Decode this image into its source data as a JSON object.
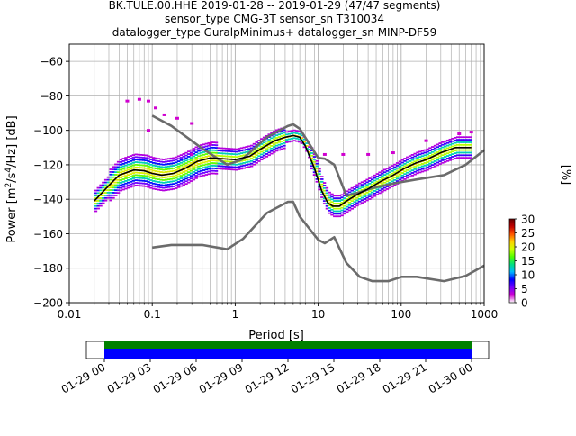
{
  "chart_data": {
    "type": "heatmap",
    "title_lines": [
      "BK.TULE.00.HHE   2019-01-28 -- 2019-01-29  (47/47 segments)",
      "sensor_type CMG-3T sensor_sn T310034",
      "datalogger_type GuralpMinimus+ datalogger_sn MINP-DF59"
    ],
    "xlabel": "Period [s]",
    "ylabel_parts": [
      "Power [m",
      "2",
      "/s",
      "4",
      "/Hz] [dB]"
    ],
    "x_scale": "log",
    "xlim": [
      0.01,
      1000
    ],
    "ylim": [
      -200,
      -50
    ],
    "x_ticks": [
      {
        "value": 0.01,
        "label": "0.01"
      },
      {
        "value": 0.1,
        "label": "0.1"
      },
      {
        "value": 1,
        "label": "1"
      },
      {
        "value": 10,
        "label": "10"
      },
      {
        "value": 100,
        "label": "100"
      },
      {
        "value": 1000,
        "label": "1000"
      }
    ],
    "y_ticks": [
      {
        "value": -60,
        "label": "−60"
      },
      {
        "value": -80,
        "label": "−80"
      },
      {
        "value": -100,
        "label": "−100"
      },
      {
        "value": -120,
        "label": "−120"
      },
      {
        "value": -140,
        "label": "−140"
      },
      {
        "value": -160,
        "label": "−160"
      },
      {
        "value": -180,
        "label": "−180"
      },
      {
        "value": -200,
        "label": "−200"
      }
    ],
    "grid": true,
    "colorbar": {
      "label": "[%]",
      "min": 0,
      "max": 30,
      "ticks": [
        {
          "value": 0,
          "label": "0"
        },
        {
          "value": 5,
          "label": "5"
        },
        {
          "value": 10,
          "label": "10"
        },
        {
          "value": 15,
          "label": "15"
        },
        {
          "value": 20,
          "label": "20"
        },
        {
          "value": 25,
          "label": "25"
        },
        {
          "value": 30,
          "label": "30"
        }
      ],
      "colors": [
        "#ffffff",
        "#d000d0",
        "#7000ff",
        "#0000ff",
        "#00b8ff",
        "#00e080",
        "#50ff00",
        "#d0ff00",
        "#ffd000",
        "#ff5000",
        "#c00000",
        "#600000"
      ]
    },
    "model_curves": [
      {
        "x": [
          0.1,
          0.17,
          0.4,
          0.8,
          1.2,
          2.4,
          4.3,
          5.0,
          6.0,
          10,
          12,
          15.6,
          21.9,
          31.6,
          45,
          70,
          101,
          154,
          328,
          600,
          1000
        ],
        "y": [
          -91.5,
          -97.4,
          -110.5,
          -120.0,
          -117.0,
          -104.0,
          -97.5,
          -96.5,
          -99.0,
          -116.0,
          -116.5,
          -120.0,
          -138.0,
          -136.0,
          -133.5,
          -131.5,
          -130.0,
          -128.5,
          -126.0,
          -120.0,
          -111.5
        ]
      },
      {
        "x": [
          0.1,
          0.17,
          0.4,
          0.8,
          1.24,
          2.4,
          4.3,
          5.0,
          6.0,
          10,
          12,
          15.6,
          21.9,
          31.6,
          45,
          70,
          101,
          154,
          328,
          600,
          1000
        ],
        "y": [
          -168.0,
          -166.5,
          -166.5,
          -169.0,
          -163.0,
          -148.0,
          -141.5,
          -141.5,
          -150.0,
          -163.5,
          -165.5,
          -162.0,
          -177.0,
          -185.0,
          -187.5,
          -187.5,
          -185.0,
          -185.0,
          -187.5,
          -184.5,
          -178.5
        ]
      }
    ],
    "median_curve": {
      "x": [
        0.02,
        0.03,
        0.04,
        0.06,
        0.08,
        0.1,
        0.13,
        0.18,
        0.25,
        0.35,
        0.5,
        0.7,
        1.0,
        1.5,
        2.0,
        3.0,
        4.0,
        5.0,
        6.0,
        7.0,
        9.0,
        11,
        13,
        15,
        18,
        22,
        30,
        40,
        55,
        80,
        110,
        150,
        200,
        300,
        450,
        700
      ],
      "y": [
        -141,
        -132,
        -126,
        -123,
        -123.5,
        -125,
        -126,
        -125,
        -122,
        -118,
        -116,
        -116.5,
        -117,
        -115,
        -111,
        -106,
        -104,
        -103,
        -104,
        -109,
        -122,
        -135,
        -142,
        -144,
        -144,
        -141,
        -137,
        -134,
        -130,
        -126,
        -122,
        -119,
        -117,
        -113,
        -110,
        -110
      ]
    },
    "scatter_points": [
      {
        "x": 0.05,
        "y": -83
      },
      {
        "x": 0.07,
        "y": -82
      },
      {
        "x": 0.09,
        "y": -83
      },
      {
        "x": 0.11,
        "y": -87
      },
      {
        "x": 0.14,
        "y": -91
      },
      {
        "x": 0.2,
        "y": -93
      },
      {
        "x": 0.3,
        "y": -96
      },
      {
        "x": 0.09,
        "y": -100
      },
      {
        "x": 0.3,
        "y": -114
      },
      {
        "x": 0.5,
        "y": -108
      },
      {
        "x": 12,
        "y": -114
      },
      {
        "x": 20,
        "y": -114
      },
      {
        "x": 40,
        "y": -114
      },
      {
        "x": 80,
        "y": -113
      },
      {
        "x": 200,
        "y": -106
      },
      {
        "x": 500,
        "y": -102
      },
      {
        "x": 700,
        "y": -101
      }
    ],
    "timeline": {
      "tick_labels": [
        "01-29 00",
        "01-29 03",
        "01-29 06",
        "01-29 09",
        "01-29 12",
        "01-29 15",
        "01-29 18",
        "01-29 21",
        "01-30 00"
      ],
      "data_colors": [
        "#008000",
        "#0000ff"
      ]
    }
  }
}
